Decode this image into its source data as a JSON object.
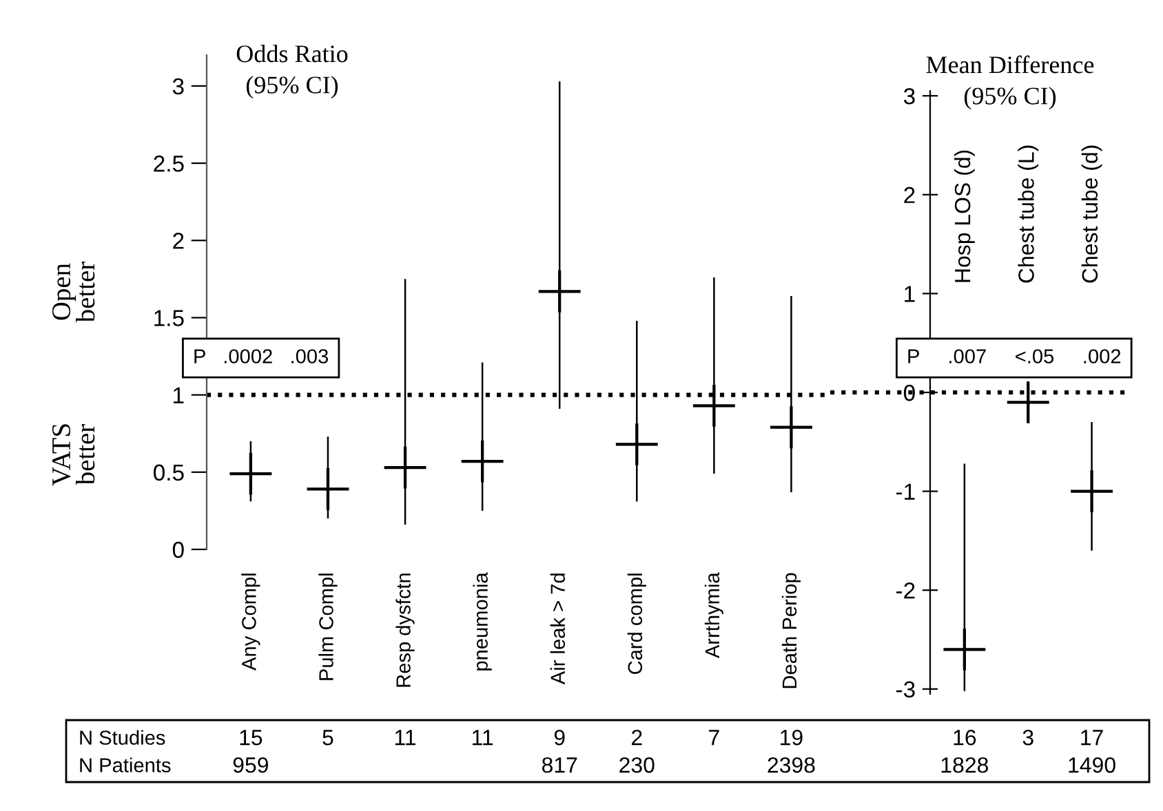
{
  "chart_data": [
    {
      "type": "scatter",
      "title": "Odds Ratio\n(95% CI)",
      "categories": [
        "Any Compl",
        "Pulm Compl",
        "Resp dysfctn",
        "pneumonia",
        "Air leak > 7d",
        "Card compl",
        "Arrthymia",
        "Death Periop"
      ],
      "series": [
        {
          "color": "#000000",
          "values": [
            0.49,
            0.39,
            0.53,
            0.57,
            1.67,
            0.68,
            0.93,
            0.79
          ],
          "errors": [
            [
              0.31,
              0.7
            ],
            [
              0.2,
              0.73
            ],
            [
              0.16,
              1.75
            ],
            [
              0.25,
              1.21
            ],
            [
              0.91,
              3.03
            ],
            [
              0.31,
              1.48
            ],
            [
              0.49,
              1.76
            ],
            [
              0.37,
              1.64
            ]
          ]
        }
      ],
      "marker": "cross",
      "ylim": [
        0,
        3.2
      ],
      "yticks": [
        0,
        0.5,
        1,
        1.5,
        2,
        2.5,
        3
      ],
      "grid": false,
      "legend": false,
      "ref_lines": [
        {
          "axis": "y",
          "value": 1,
          "line_style": "dotted",
          "color": "#000000"
        }
      ],
      "annotations": [
        "Open\nbetter",
        "VATS\nbetter",
        "P   .0002   .003",
        "N Studies",
        "N Patients",
        "15",
        "959",
        "5",
        "11",
        "11",
        "9",
        "817",
        "2",
        "230",
        "7",
        "19",
        "2398"
      ]
    },
    {
      "type": "scatter",
      "title": "Mean Difference\n(95% CI)",
      "categories": [
        "Hosp LOS (d)",
        "Chest tube (L)",
        "Chest tube (d)"
      ],
      "series": [
        {
          "color": "#000000",
          "values": [
            -2.6,
            -0.1,
            -1.0
          ],
          "errors": [
            [
              -3.02,
              -0.72
            ],
            [
              -0.2,
              -0.05
            ],
            [
              -1.6,
              -0.3
            ]
          ]
        }
      ],
      "marker": "cross",
      "ylim": [
        -3.05,
        3.05
      ],
      "yticks": [
        -3,
        -2,
        -1,
        0,
        1,
        2,
        3
      ],
      "grid": false,
      "legend": false,
      "ref_lines": [
        {
          "axis": "y",
          "value": 0,
          "line_style": "dotted",
          "color": "#000000"
        }
      ],
      "annotations": [
        "P     .007     <.05     .002",
        "16",
        "1828",
        "3",
        "17",
        "1490"
      ]
    }
  ]
}
